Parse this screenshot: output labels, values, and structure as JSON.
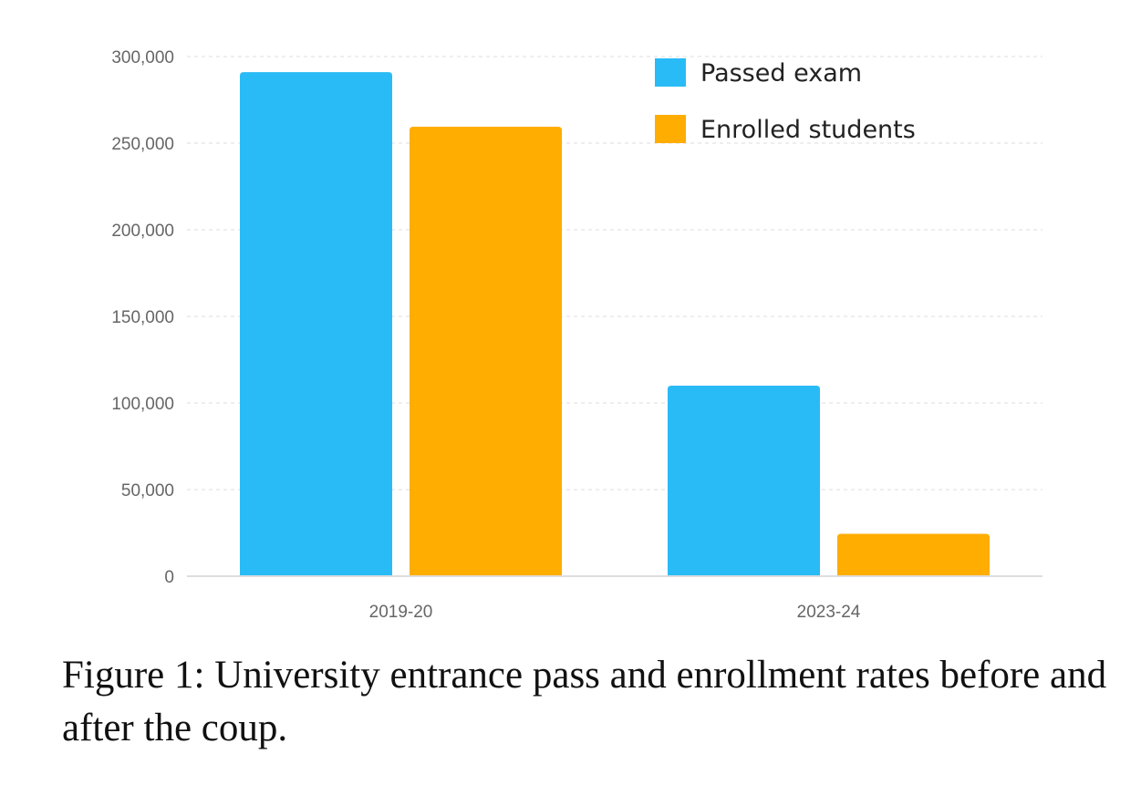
{
  "caption": "Figure 1: University entrance pass and enrollment rates before and after the coup.",
  "chart_data": {
    "type": "bar",
    "categories": [
      "2019-20",
      "2023-24"
    ],
    "series": [
      {
        "name": "Passed exam",
        "color": "#29bbf6",
        "values": [
          291000,
          110000
        ]
      },
      {
        "name": "Enrolled students",
        "color": "#ffad00",
        "values": [
          259500,
          24500
        ]
      }
    ],
    "ylim": [
      0,
      300000
    ],
    "yticks": [
      0,
      50000,
      100000,
      150000,
      200000,
      250000,
      300000
    ],
    "ytick_labels": [
      "0",
      "50,000",
      "100,000",
      "150,000",
      "200,000",
      "250,000",
      "300,000"
    ],
    "grid": true,
    "legend_position": "top-right"
  }
}
